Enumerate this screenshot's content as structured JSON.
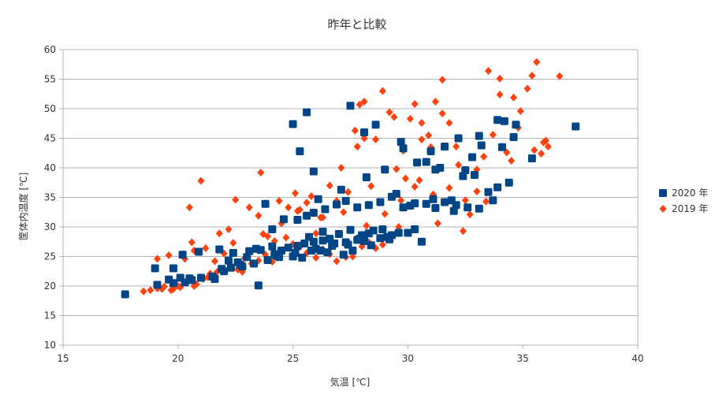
{
  "chart_data": {
    "type": "scatter",
    "title": "昨年と比較",
    "xlabel": "気温 [℃]",
    "ylabel": "筐体内温度 [℃]",
    "xlim": [
      15,
      40
    ],
    "ylim": [
      10,
      60
    ],
    "xticks": [
      15,
      20,
      25,
      30,
      35,
      40
    ],
    "yticks": [
      10,
      15,
      20,
      25,
      30,
      35,
      40,
      45,
      50,
      55,
      60
    ],
    "grid": "horizontal",
    "legend_position": "right",
    "series": [
      {
        "name": "2020 年",
        "color": "#004586",
        "marker": "square",
        "points": [
          [
            17.7,
            18.6
          ],
          [
            19.0,
            23.0
          ],
          [
            19.1,
            20.2
          ],
          [
            19.6,
            21.1
          ],
          [
            19.8,
            20.5
          ],
          [
            19.8,
            23.0
          ],
          [
            20.1,
            21.4
          ],
          [
            20.2,
            25.3
          ],
          [
            20.3,
            20.6
          ],
          [
            20.6,
            21.0
          ],
          [
            20.9,
            25.8
          ],
          [
            21.0,
            21.4
          ],
          [
            21.6,
            21.2
          ],
          [
            21.8,
            26.2
          ],
          [
            22.0,
            22.5
          ],
          [
            22.3,
            23.1
          ],
          [
            22.4,
            25.6
          ],
          [
            22.7,
            23.6
          ],
          [
            23.0,
            24.9
          ],
          [
            23.3,
            23.8
          ],
          [
            23.6,
            26.1
          ],
          [
            23.9,
            24.4
          ],
          [
            24.1,
            29.6
          ],
          [
            24.2,
            25.4
          ],
          [
            24.5,
            26.0
          ],
          [
            24.8,
            26.5
          ],
          [
            25.0,
            25.0
          ],
          [
            25.2,
            26.8
          ],
          [
            25.5,
            27.2
          ],
          [
            25.7,
            28.3
          ],
          [
            25.9,
            27.5
          ],
          [
            26.2,
            26.0
          ],
          [
            26.3,
            29.2
          ],
          [
            26.6,
            28.0
          ],
          [
            26.8,
            27.2
          ],
          [
            27.0,
            28.8
          ],
          [
            27.3,
            27.4
          ],
          [
            27.5,
            29.5
          ],
          [
            27.8,
            27.8
          ],
          [
            28.0,
            28.6
          ],
          [
            28.3,
            28.9
          ],
          [
            28.5,
            29.4
          ],
          [
            28.8,
            28.1
          ],
          [
            29.3,
            28.6
          ],
          [
            29.6,
            29.0
          ],
          [
            30.0,
            29.0
          ],
          [
            30.3,
            29.6
          ],
          [
            23.8,
            33.9
          ],
          [
            24.1,
            26.7
          ],
          [
            24.6,
            31.3
          ],
          [
            25.2,
            31.2
          ],
          [
            25.6,
            31.9
          ],
          [
            25.9,
            32.4
          ],
          [
            26.4,
            33.0
          ],
          [
            26.9,
            33.8
          ],
          [
            27.3,
            34.4
          ],
          [
            27.8,
            33.3
          ],
          [
            28.3,
            33.7
          ],
          [
            28.8,
            34.2
          ],
          [
            29.3,
            35.1
          ],
          [
            29.8,
            33.3
          ],
          [
            30.3,
            34.0
          ],
          [
            30.8,
            33.9
          ],
          [
            31.2,
            33.2
          ],
          [
            31.6,
            34.2
          ],
          [
            32.1,
            33.7
          ],
          [
            32.6,
            33.3
          ],
          [
            33.1,
            33.1
          ],
          [
            33.7,
            34.5
          ],
          [
            25.0,
            47.4
          ],
          [
            25.3,
            42.8
          ],
          [
            25.6,
            49.4
          ],
          [
            25.9,
            39.4
          ],
          [
            27.5,
            50.5
          ],
          [
            28.1,
            46.0
          ],
          [
            28.6,
            47.3
          ],
          [
            29.0,
            39.7
          ],
          [
            29.7,
            44.4
          ],
          [
            29.8,
            43.3
          ],
          [
            30.4,
            40.9
          ],
          [
            31.0,
            42.8
          ],
          [
            31.2,
            39.7
          ],
          [
            31.6,
            43.6
          ],
          [
            32.2,
            45.0
          ],
          [
            32.5,
            39.6
          ],
          [
            32.8,
            41.8
          ],
          [
            33.1,
            45.4
          ],
          [
            33.2,
            43.8
          ],
          [
            33.9,
            48.1
          ],
          [
            34.2,
            47.9
          ],
          [
            34.7,
            47.3
          ],
          [
            34.1,
            43.5
          ],
          [
            34.4,
            37.5
          ],
          [
            33.9,
            36.7
          ],
          [
            35.4,
            41.6
          ],
          [
            37.3,
            47.0
          ],
          [
            23.5,
            20.1
          ],
          [
            20.5,
            21.3
          ],
          [
            22.8,
            23.3
          ],
          [
            25.1,
            25.6
          ],
          [
            26.0,
            26.3
          ],
          [
            26.7,
            26.8
          ],
          [
            27.2,
            25.3
          ],
          [
            27.6,
            26.0
          ],
          [
            28.1,
            27.6
          ],
          [
            28.9,
            29.6
          ],
          [
            29.2,
            27.9
          ],
          [
            30.6,
            27.5
          ],
          [
            31.1,
            34.7
          ],
          [
            31.9,
            34.5
          ],
          [
            32.4,
            38.6
          ],
          [
            32.9,
            38.8
          ],
          [
            33.5,
            35.9
          ],
          [
            34.6,
            45.2
          ],
          [
            30.8,
            41.0
          ],
          [
            31.4,
            40.0
          ],
          [
            32.0,
            32.7
          ],
          [
            26.1,
            34.7
          ],
          [
            27.1,
            36.3
          ],
          [
            28.2,
            38.4
          ],
          [
            29.5,
            35.6
          ],
          [
            30.1,
            33.6
          ],
          [
            22.2,
            24.3
          ],
          [
            23.1,
            25.9
          ],
          [
            24.4,
            24.9
          ],
          [
            25.4,
            24.8
          ],
          [
            26.5,
            25.7
          ],
          [
            27.4,
            27.0
          ],
          [
            28.4,
            26.9
          ],
          [
            29.1,
            28.3
          ],
          [
            21.5,
            21.6
          ],
          [
            21.9,
            22.9
          ],
          [
            22.6,
            24.0
          ],
          [
            23.4,
            26.3
          ],
          [
            24.3,
            25.1
          ],
          [
            25.8,
            26.0
          ],
          [
            26.3,
            27.7
          ],
          [
            27.9,
            28.0
          ]
        ]
      },
      {
        "name": "2019 年",
        "color": "#ff420e",
        "marker": "diamond",
        "points": [
          [
            18.5,
            19.1
          ],
          [
            18.8,
            19.3
          ],
          [
            19.1,
            24.6
          ],
          [
            19.3,
            19.5
          ],
          [
            19.6,
            25.2
          ],
          [
            19.7,
            19.3
          ],
          [
            20.0,
            20.0
          ],
          [
            20.3,
            24.6
          ],
          [
            20.5,
            33.3
          ],
          [
            20.6,
            27.4
          ],
          [
            20.7,
            20.0
          ],
          [
            21.0,
            37.8
          ],
          [
            21.3,
            21.5
          ],
          [
            21.6,
            24.2
          ],
          [
            21.8,
            28.9
          ],
          [
            22.0,
            25.5
          ],
          [
            22.2,
            29.6
          ],
          [
            22.5,
            34.6
          ],
          [
            22.8,
            22.4
          ],
          [
            23.1,
            33.3
          ],
          [
            23.5,
            31.9
          ],
          [
            23.6,
            39.2
          ],
          [
            23.9,
            28.4
          ],
          [
            24.2,
            27.6
          ],
          [
            24.4,
            34.4
          ],
          [
            24.8,
            33.3
          ],
          [
            25.1,
            35.7
          ],
          [
            25.3,
            32.9
          ],
          [
            25.6,
            34.1
          ],
          [
            25.8,
            35.2
          ],
          [
            26.0,
            28.9
          ],
          [
            26.3,
            31.6
          ],
          [
            26.6,
            37.0
          ],
          [
            26.9,
            34.4
          ],
          [
            27.1,
            40.0
          ],
          [
            27.4,
            35.9
          ],
          [
            27.7,
            46.3
          ],
          [
            27.9,
            50.7
          ],
          [
            28.1,
            51.2
          ],
          [
            28.4,
            36.9
          ],
          [
            28.6,
            44.8
          ],
          [
            28.9,
            53.0
          ],
          [
            29.2,
            49.4
          ],
          [
            29.5,
            39.8
          ],
          [
            29.8,
            42.9
          ],
          [
            30.1,
            48.3
          ],
          [
            30.3,
            50.8
          ],
          [
            30.6,
            47.6
          ],
          [
            30.9,
            45.5
          ],
          [
            31.2,
            51.2
          ],
          [
            31.5,
            49.2
          ],
          [
            31.8,
            47.6
          ],
          [
            32.1,
            43.6
          ],
          [
            32.4,
            29.3
          ],
          [
            32.7,
            32.1
          ],
          [
            33.0,
            36.0
          ],
          [
            33.3,
            41.9
          ],
          [
            33.5,
            56.4
          ],
          [
            33.7,
            45.6
          ],
          [
            34.0,
            52.4
          ],
          [
            34.3,
            42.6
          ],
          [
            34.6,
            51.9
          ],
          [
            34.9,
            49.6
          ],
          [
            35.2,
            53.4
          ],
          [
            35.5,
            43.0
          ],
          [
            35.6,
            57.9
          ],
          [
            35.9,
            44.3
          ],
          [
            36.1,
            43.6
          ],
          [
            36.6,
            55.5
          ],
          [
            35.4,
            55.6
          ],
          [
            34.0,
            55.1
          ],
          [
            31.5,
            54.9
          ],
          [
            30.6,
            44.8
          ],
          [
            29.9,
            38.2
          ],
          [
            29.6,
            30.0
          ],
          [
            29.3,
            28.7
          ],
          [
            28.9,
            27.0
          ],
          [
            28.6,
            26.4
          ],
          [
            28.3,
            27.4
          ],
          [
            28.0,
            26.7
          ],
          [
            27.6,
            25.0
          ],
          [
            27.3,
            24.9
          ],
          [
            26.9,
            24.2
          ],
          [
            26.6,
            25.4
          ],
          [
            26.3,
            26.2
          ],
          [
            26.0,
            24.8
          ],
          [
            25.6,
            25.6
          ],
          [
            25.3,
            26.6
          ],
          [
            25.0,
            27.1
          ],
          [
            24.7,
            28.2
          ],
          [
            24.4,
            25.7
          ],
          [
            24.1,
            24.1
          ],
          [
            23.8,
            25.3
          ],
          [
            23.5,
            24.3
          ],
          [
            23.2,
            23.8
          ],
          [
            22.9,
            24.7
          ],
          [
            22.6,
            22.8
          ],
          [
            22.3,
            23.4
          ],
          [
            22.0,
            22.6
          ],
          [
            21.7,
            22.4
          ],
          [
            21.4,
            22.1
          ],
          [
            21.1,
            21.2
          ],
          [
            20.8,
            20.3
          ],
          [
            20.4,
            20.6
          ],
          [
            20.1,
            19.8
          ],
          [
            19.8,
            19.5
          ],
          [
            19.4,
            19.9
          ],
          [
            19.1,
            19.6
          ],
          [
            20.7,
            26.0
          ],
          [
            21.2,
            26.4
          ],
          [
            22.4,
            27.3
          ],
          [
            23.7,
            28.8
          ],
          [
            24.5,
            30.6
          ],
          [
            25.2,
            32.7
          ],
          [
            26.2,
            31.6
          ],
          [
            27.2,
            32.5
          ],
          [
            28.2,
            30.2
          ],
          [
            29.0,
            32.2
          ],
          [
            29.7,
            34.5
          ],
          [
            30.5,
            37.9
          ],
          [
            31.1,
            35.5
          ],
          [
            31.8,
            36.6
          ],
          [
            32.5,
            34.5
          ],
          [
            33.4,
            34.3
          ],
          [
            30.3,
            36.8
          ],
          [
            31.3,
            30.6
          ],
          [
            32.2,
            40.5
          ],
          [
            33.0,
            39.7
          ],
          [
            34.5,
            41.2
          ],
          [
            35.8,
            42.4
          ],
          [
            36.0,
            44.6
          ],
          [
            34.8,
            46.8
          ],
          [
            31.0,
            43.5
          ],
          [
            29.4,
            48.6
          ],
          [
            28.1,
            45.0
          ],
          [
            27.8,
            43.6
          ]
        ]
      }
    ]
  }
}
